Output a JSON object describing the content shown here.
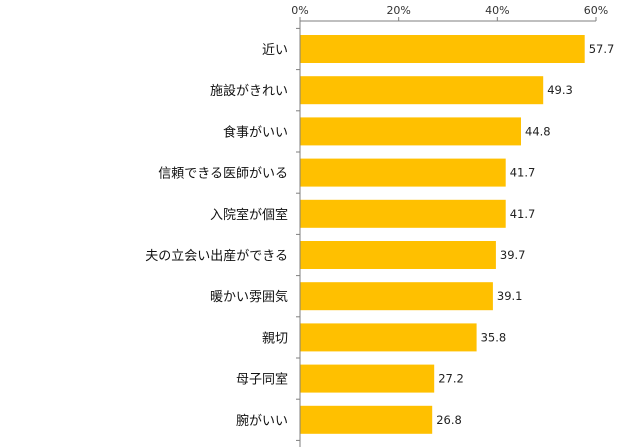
{
  "chart_data": {
    "type": "bar",
    "orientation": "horizontal",
    "categories": [
      "近い",
      "施設がきれい",
      "食事がいい",
      "信頼できる医師がいる",
      "入院室が個室",
      "夫の立会い出産ができる",
      "暖かい雰囲気",
      "親切",
      "母子同室",
      "腕がいい"
    ],
    "values": [
      57.7,
      49.3,
      44.8,
      41.7,
      41.7,
      39.7,
      39.1,
      35.8,
      27.2,
      26.8
    ],
    "data_labels": [
      "57.7",
      "49.3",
      "44.8",
      "41.7",
      "41.7",
      "39.7",
      "39.1",
      "35.8",
      "27.2",
      "26.8"
    ],
    "xticks": [
      0,
      20,
      40,
      60
    ],
    "xtick_labels": [
      "0%",
      "20%",
      "40%",
      "60%"
    ],
    "xlim": [
      0,
      60
    ],
    "axis_position": "top",
    "grid": false,
    "legend": "none",
    "title": "",
    "xlabel": "",
    "ylabel": "",
    "colors": {
      "bar": "#FFC000",
      "axis": "#7f7f7f"
    }
  }
}
